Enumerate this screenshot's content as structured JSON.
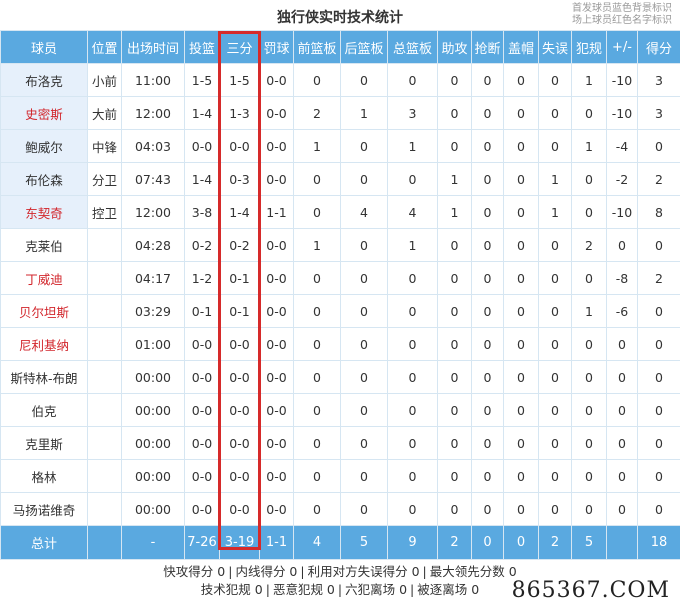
{
  "title": "独行侠实时技术统计",
  "legend": [
    "首发球员蓝色背景标识",
    "场上球员红色名字标识"
  ],
  "columns": [
    "球员",
    "位置",
    "出场时间",
    "投篮",
    "三分",
    "罚球",
    "前篮板",
    "后篮板",
    "总篮板",
    "助攻",
    "抢断",
    "盖帽",
    "失误",
    "犯规",
    "+/-",
    "得分"
  ],
  "players": [
    {
      "name": "布洛克",
      "starter": true,
      "on_court": false,
      "cells": [
        "小前",
        "11:00",
        "1-5",
        "1-5",
        "0-0",
        "0",
        "0",
        "0",
        "0",
        "0",
        "0",
        "0",
        "1",
        "-10",
        "3"
      ]
    },
    {
      "name": "史密斯",
      "starter": true,
      "on_court": true,
      "cells": [
        "大前",
        "12:00",
        "1-4",
        "1-3",
        "0-0",
        "2",
        "1",
        "3",
        "0",
        "0",
        "0",
        "0",
        "0",
        "-10",
        "3"
      ]
    },
    {
      "name": "鲍威尔",
      "starter": true,
      "on_court": false,
      "cells": [
        "中锋",
        "04:03",
        "0-0",
        "0-0",
        "0-0",
        "1",
        "0",
        "1",
        "0",
        "0",
        "0",
        "0",
        "1",
        "-4",
        "0"
      ]
    },
    {
      "name": "布伦森",
      "starter": true,
      "on_court": false,
      "cells": [
        "分卫",
        "07:43",
        "1-4",
        "0-3",
        "0-0",
        "0",
        "0",
        "0",
        "1",
        "0",
        "0",
        "1",
        "0",
        "-2",
        "2"
      ]
    },
    {
      "name": "东契奇",
      "starter": true,
      "on_court": true,
      "cells": [
        "控卫",
        "12:00",
        "3-8",
        "1-4",
        "1-1",
        "0",
        "4",
        "4",
        "1",
        "0",
        "0",
        "1",
        "0",
        "-10",
        "8"
      ]
    },
    {
      "name": "克莱伯",
      "starter": false,
      "on_court": false,
      "cells": [
        "",
        "04:28",
        "0-2",
        "0-2",
        "0-0",
        "1",
        "0",
        "1",
        "0",
        "0",
        "0",
        "0",
        "2",
        "0",
        "0"
      ]
    },
    {
      "name": "丁威迪",
      "starter": false,
      "on_court": true,
      "cells": [
        "",
        "04:17",
        "1-2",
        "0-1",
        "0-0",
        "0",
        "0",
        "0",
        "0",
        "0",
        "0",
        "0",
        "0",
        "-8",
        "2"
      ]
    },
    {
      "name": "贝尔坦斯",
      "starter": false,
      "on_court": true,
      "cells": [
        "",
        "03:29",
        "0-1",
        "0-1",
        "0-0",
        "0",
        "0",
        "0",
        "0",
        "0",
        "0",
        "0",
        "1",
        "-6",
        "0"
      ]
    },
    {
      "name": "尼利基纳",
      "starter": false,
      "on_court": true,
      "cells": [
        "",
        "01:00",
        "0-0",
        "0-0",
        "0-0",
        "0",
        "0",
        "0",
        "0",
        "0",
        "0",
        "0",
        "0",
        "0",
        "0"
      ]
    },
    {
      "name": "斯特林-布朗",
      "starter": false,
      "on_court": false,
      "cells": [
        "",
        "00:00",
        "0-0",
        "0-0",
        "0-0",
        "0",
        "0",
        "0",
        "0",
        "0",
        "0",
        "0",
        "0",
        "0",
        "0"
      ]
    },
    {
      "name": "伯克",
      "starter": false,
      "on_court": false,
      "cells": [
        "",
        "00:00",
        "0-0",
        "0-0",
        "0-0",
        "0",
        "0",
        "0",
        "0",
        "0",
        "0",
        "0",
        "0",
        "0",
        "0"
      ]
    },
    {
      "name": "克里斯",
      "starter": false,
      "on_court": false,
      "cells": [
        "",
        "00:00",
        "0-0",
        "0-0",
        "0-0",
        "0",
        "0",
        "0",
        "0",
        "0",
        "0",
        "0",
        "0",
        "0",
        "0"
      ]
    },
    {
      "name": "格林",
      "starter": false,
      "on_court": false,
      "cells": [
        "",
        "00:00",
        "0-0",
        "0-0",
        "0-0",
        "0",
        "0",
        "0",
        "0",
        "0",
        "0",
        "0",
        "0",
        "0",
        "0"
      ]
    },
    {
      "name": "马扬诺维奇",
      "starter": false,
      "on_court": false,
      "cells": [
        "",
        "00:00",
        "0-0",
        "0-0",
        "0-0",
        "0",
        "0",
        "0",
        "0",
        "0",
        "0",
        "0",
        "0",
        "0",
        "0"
      ]
    }
  ],
  "totals": {
    "label": "总计",
    "cells": [
      "",
      "-",
      "7-26",
      "3-19",
      "1-1",
      "4",
      "5",
      "9",
      "2",
      "0",
      "0",
      "2",
      "5",
      "",
      "18"
    ]
  },
  "footer": {
    "line1": [
      "快攻得分 0",
      "内线得分 0",
      "利用对方失误得分 0",
      "最大领先分数 0"
    ],
    "line2": [
      "技术犯规 0",
      "恶意犯规 0",
      "六犯离场 0",
      "被逐离场 0"
    ]
  },
  "watermark": "865367.COM",
  "colors": {
    "header_bg": "#5aa9e0",
    "starter_bg": "#e6f0fb",
    "on_court_name": "#d2262c",
    "highlight": "#d62a2a"
  }
}
